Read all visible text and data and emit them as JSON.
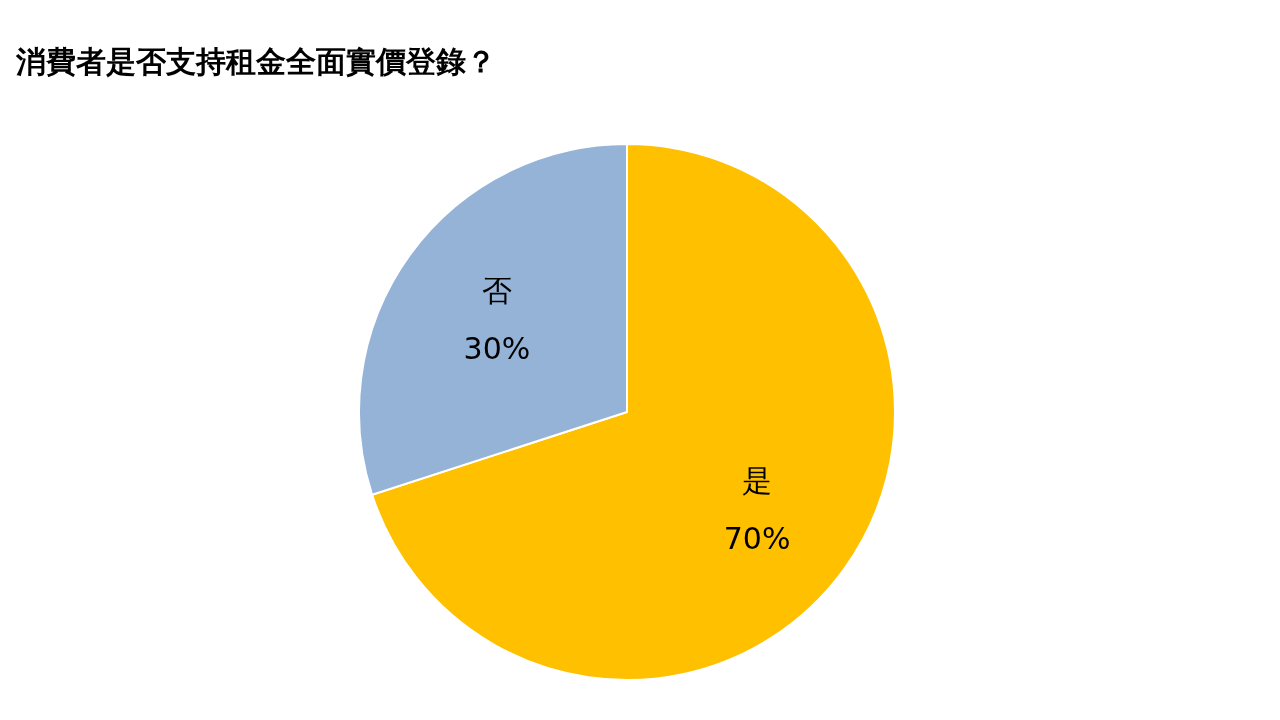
{
  "chart_data": {
    "type": "pie",
    "title": "消費者是否支持租金全面實價登錄？",
    "categories": [
      "是",
      "否"
    ],
    "values": [
      70,
      30
    ],
    "value_labels": [
      "70%",
      "30%"
    ],
    "colors": [
      "#ffc000",
      "#95b3d7"
    ]
  }
}
